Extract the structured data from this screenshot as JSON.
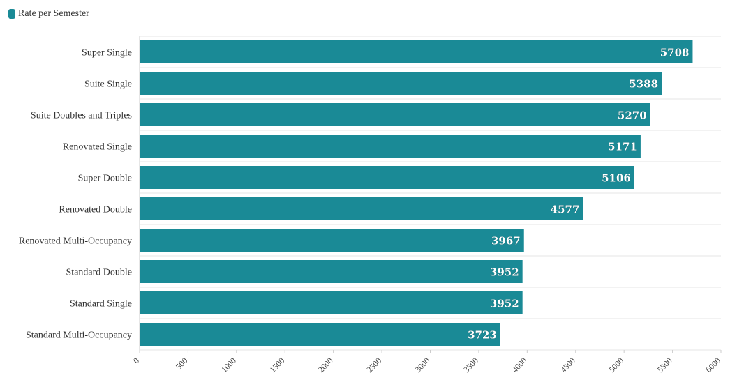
{
  "legend": {
    "label": "Rate per Semester",
    "color": "#1a8a96"
  },
  "chart_data": {
    "type": "bar",
    "orientation": "horizontal",
    "categories": [
      "Super Single",
      "Suite Single",
      "Suite Doubles and Triples",
      "Renovated Single",
      "Super Double",
      "Renovated Double",
      "Renovated Multi-Occupancy",
      "Standard Double",
      "Standard Single",
      "Standard Multi-Occupancy"
    ],
    "series": [
      {
        "name": "Rate per Semester",
        "values": [
          5708,
          5388,
          5270,
          5171,
          5106,
          4577,
          3967,
          3952,
          3952,
          3723
        ]
      }
    ],
    "xlim": [
      0,
      6000
    ],
    "xticks": [
      0,
      500,
      1000,
      1500,
      2000,
      2500,
      3000,
      3500,
      4000,
      4500,
      5000,
      5500,
      6000
    ],
    "grid": true,
    "legend_position": "top-left",
    "colors": {
      "bar": "#1a8a96",
      "grid": "#e6e6e6",
      "value_label": "#ffffff"
    }
  }
}
